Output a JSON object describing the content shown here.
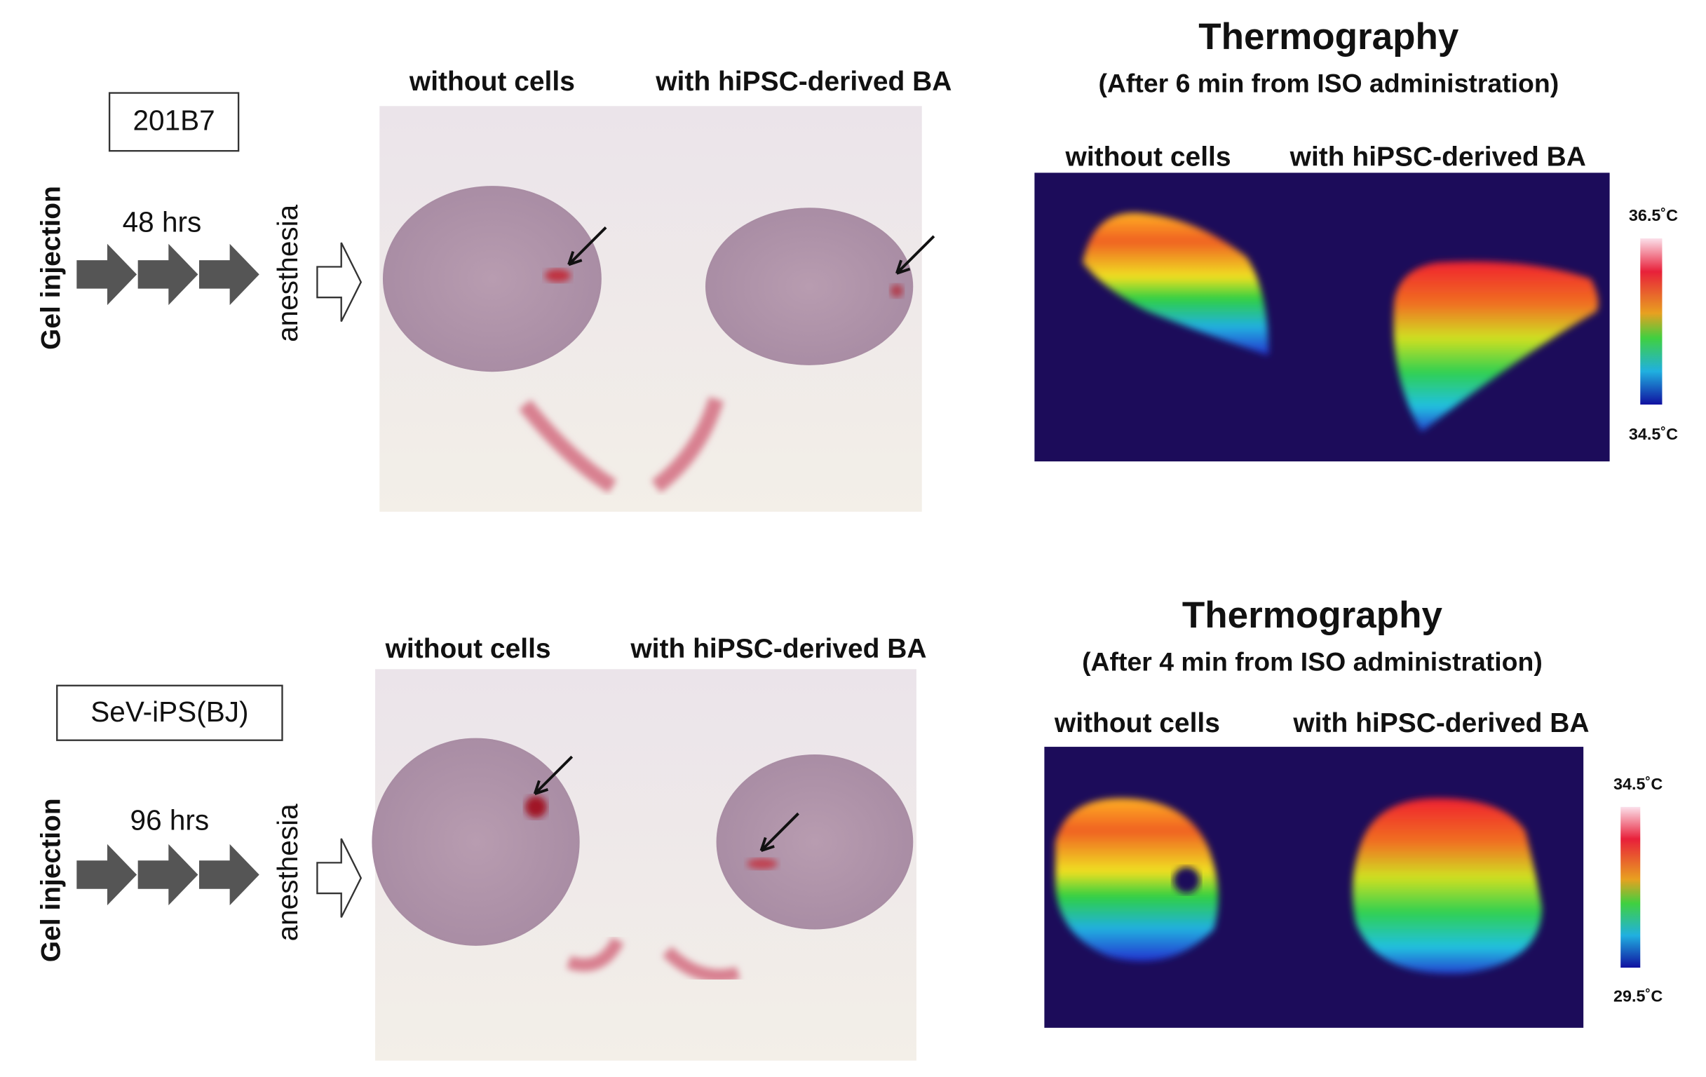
{
  "rows": [
    {
      "label": "201B7",
      "step": "Gel injection",
      "duration": "48 hrs",
      "treatment": "anesthesia",
      "photo_captions": [
        "without cells",
        "with hiPSC-derived BA"
      ],
      "thermo_title": "Thermography",
      "thermo_subtitle": "(After 6 min from ISO administration)",
      "thermo_captions": [
        "without cells",
        "with hiPSC-derived BA"
      ],
      "scale_max": "36.5˚C",
      "scale_min": "34.5˚C"
    },
    {
      "label": "SeV-iPS(BJ)",
      "step": "Gel injection",
      "duration": "96 hrs",
      "treatment": "anesthesia",
      "photo_captions": [
        "without cells",
        "with hiPSC-derived BA"
      ],
      "thermo_title": "Thermography",
      "thermo_subtitle": "(After 4 min from ISO administration)",
      "thermo_captions": [
        "without cells",
        "with hiPSC-derived BA"
      ],
      "scale_max": "34.5˚C",
      "scale_min": "29.5˚C"
    }
  ]
}
